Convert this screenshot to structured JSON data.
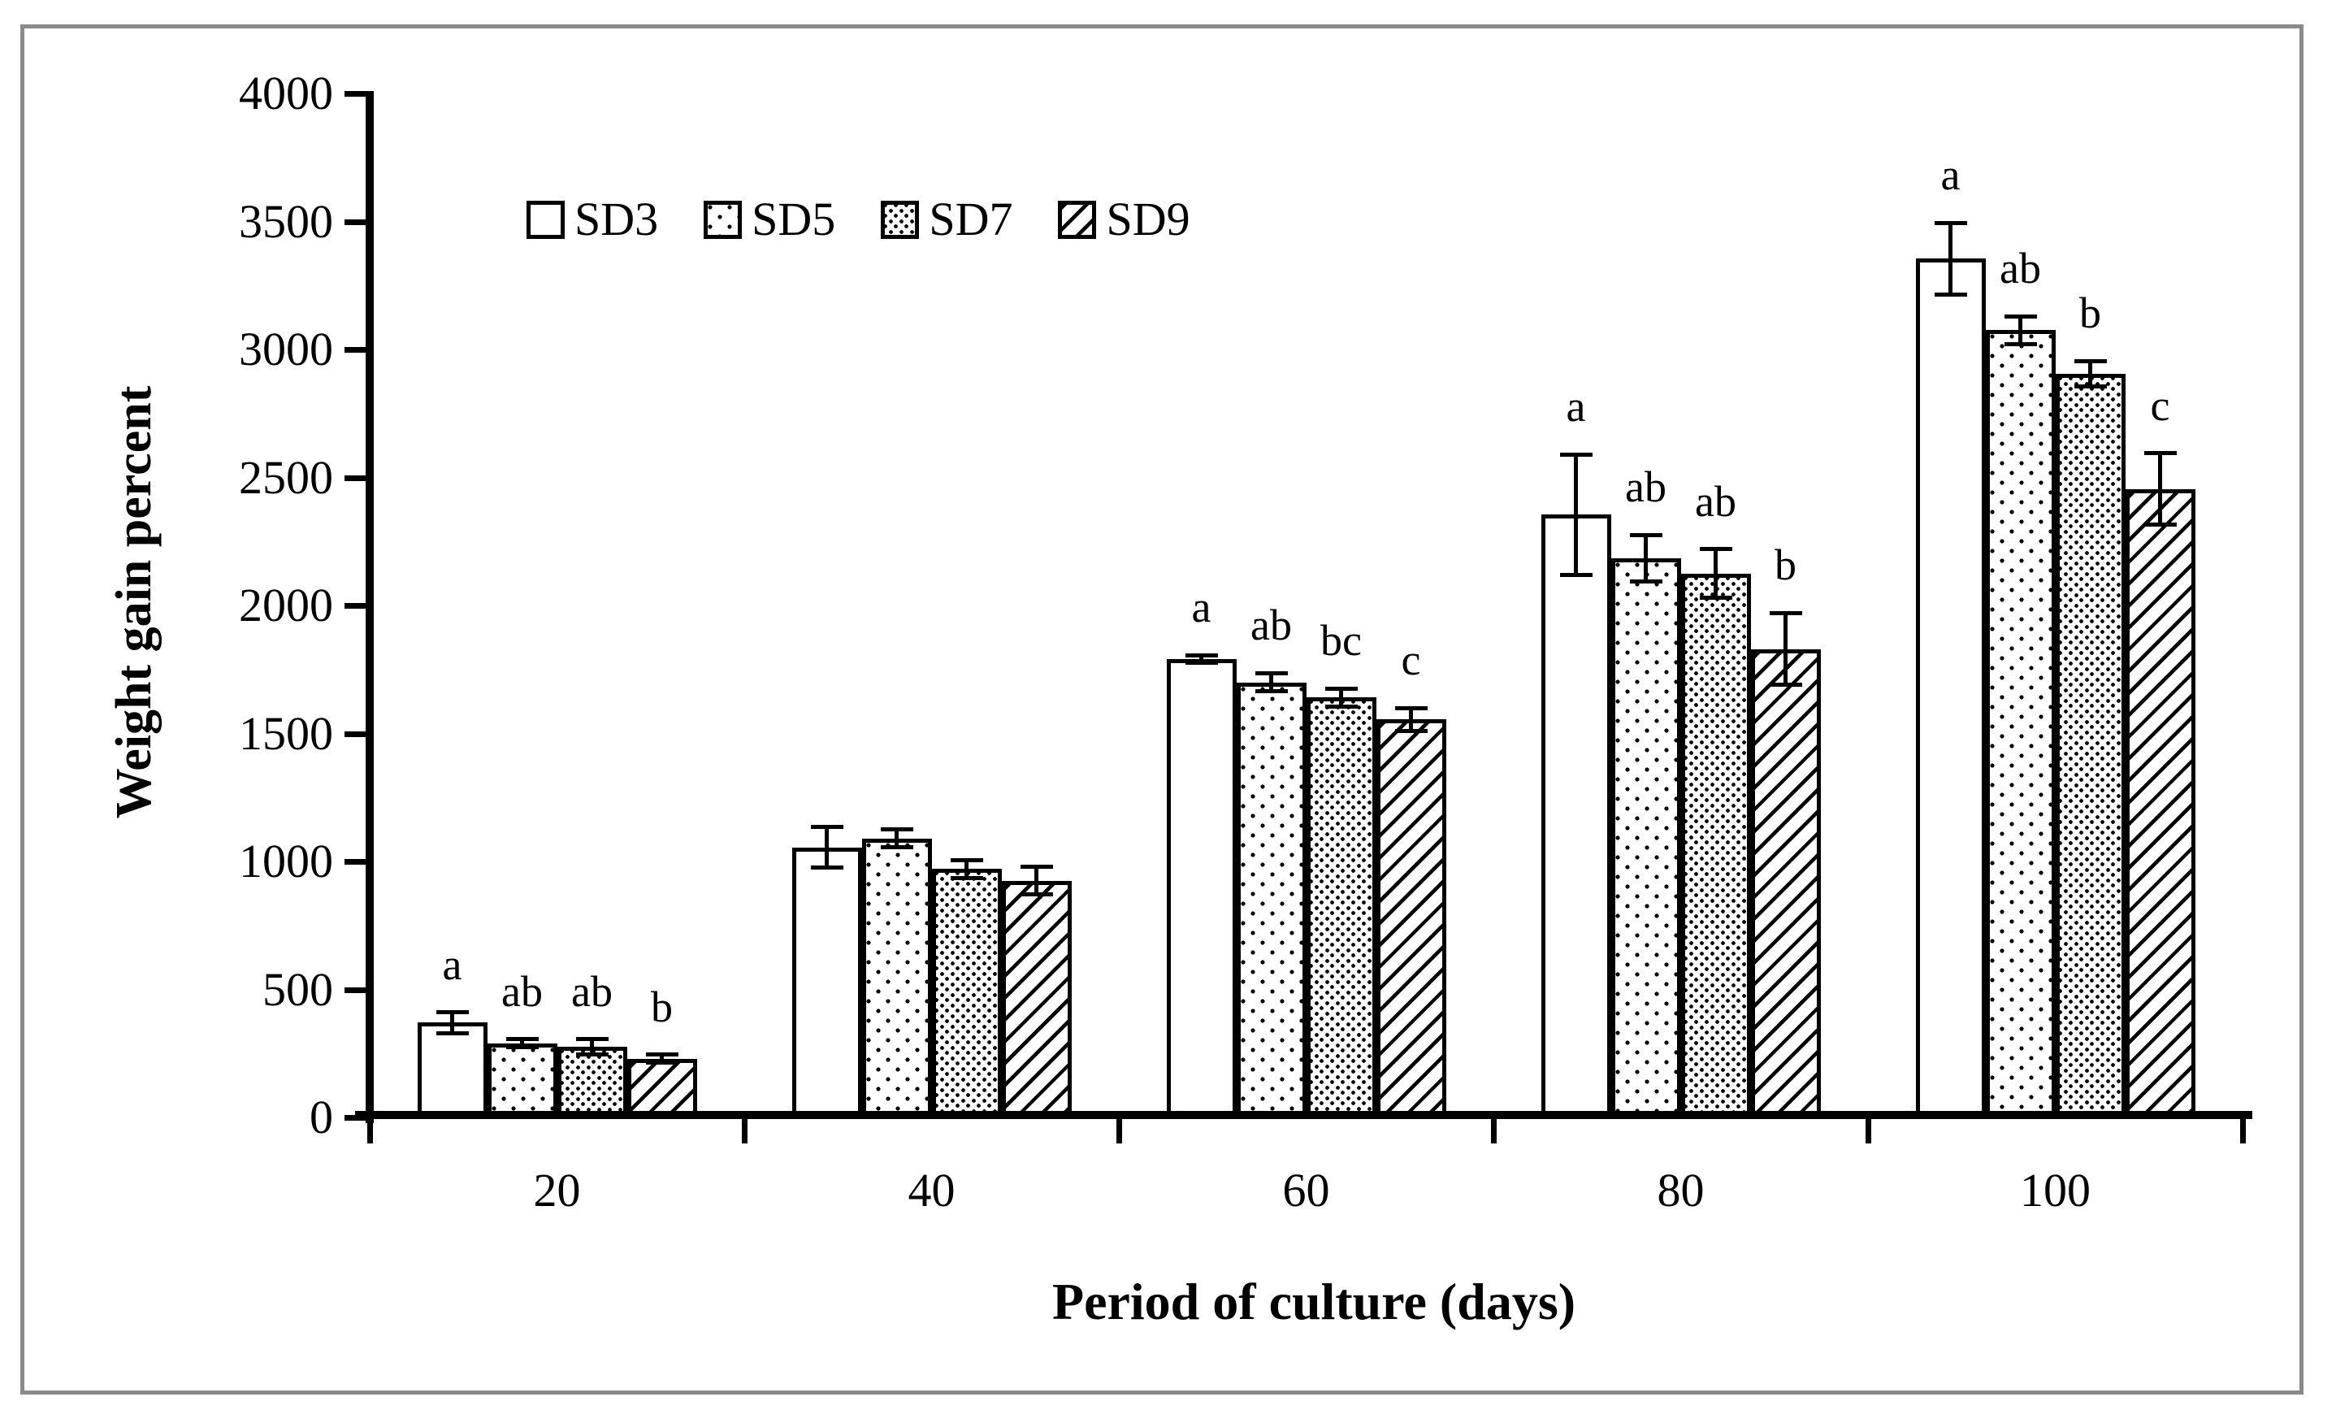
{
  "figure": {
    "background_color": "#ffffff",
    "frame_color": "#8a8a8a",
    "ink_color": "#000000"
  },
  "chart_data": {
    "type": "bar",
    "title": "",
    "xlabel": "Period of culture (days)",
    "ylabel": "Weight gain percent",
    "categories": [
      "20",
      "40",
      "60",
      "80",
      "100"
    ],
    "series": [
      {
        "name": "SD3",
        "pattern": "plain-white",
        "values": [
          370,
          1055,
          1790,
          2355,
          3355
        ],
        "errors": [
          40,
          80,
          15,
          235,
          140
        ],
        "letters": [
          "a",
          "",
          "a",
          "a",
          "a"
        ]
      },
      {
        "name": "SD5",
        "pattern": "sparse-dots",
        "values": [
          290,
          1090,
          1700,
          2185,
          3075
        ],
        "errors": [
          15,
          35,
          35,
          90,
          55
        ],
        "letters": [
          "ab",
          "",
          "ab",
          "ab",
          "ab"
        ]
      },
      {
        "name": "SD7",
        "pattern": "dense-dots",
        "values": [
          275,
          970,
          1640,
          2125,
          2905
        ],
        "errors": [
          30,
          35,
          35,
          95,
          50
        ],
        "letters": [
          "ab",
          "",
          "bc",
          "ab",
          "b"
        ]
      },
      {
        "name": "SD9",
        "pattern": "diagonal-hatch",
        "values": [
          230,
          925,
          1555,
          1830,
          2455
        ],
        "errors": [
          15,
          55,
          45,
          140,
          140
        ],
        "letters": [
          "b",
          "",
          "c",
          "b",
          "c"
        ]
      }
    ],
    "ylim": [
      0,
      4000
    ],
    "ytick_step": 500,
    "yticks": [
      "0",
      "500",
      "1000",
      "1500",
      "2000",
      "2500",
      "3000",
      "3500",
      "4000"
    ],
    "legend_position": "top-inside",
    "grid": false,
    "error_bars": true
  }
}
